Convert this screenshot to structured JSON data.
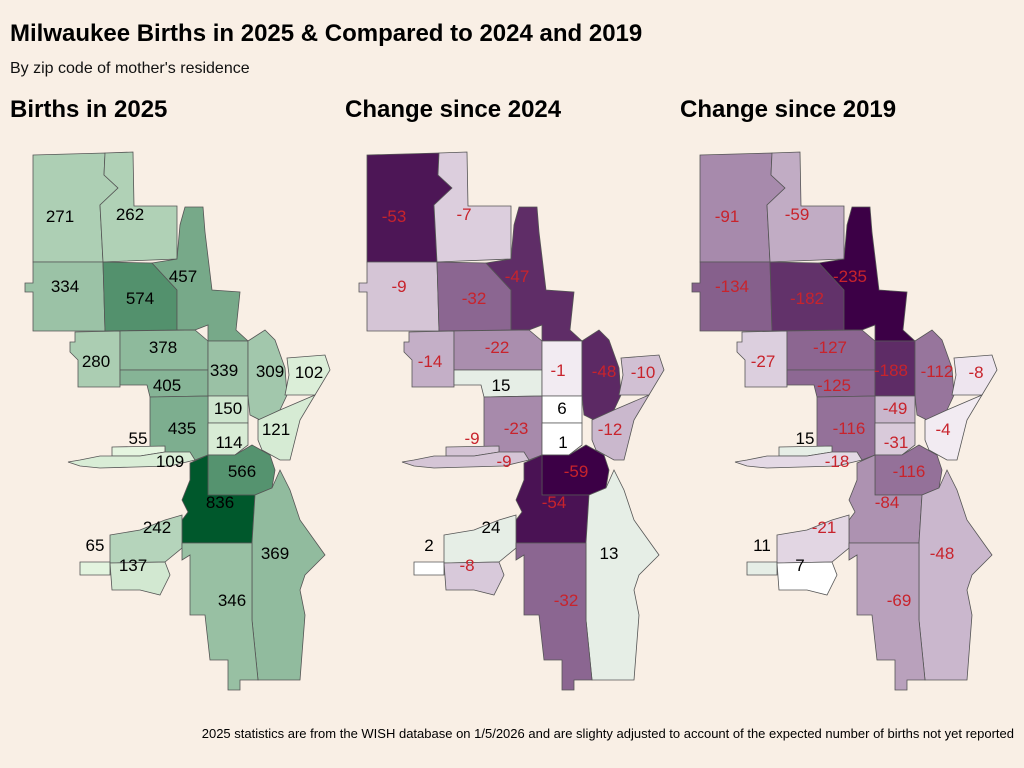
{
  "title": "Milwaukee Births in 2025 & Compared to 2024 and 2019",
  "subtitle": "By zip code of mother's residence",
  "panels": [
    {
      "title": "Births in 2025",
      "field": "births",
      "palette": "green"
    },
    {
      "title": "Change since 2024",
      "field": "change_since_2024",
      "palette": "purple"
    },
    {
      "title": "Change since 2019",
      "field": "change_since_2019",
      "palette": "purple"
    }
  ],
  "footer": "2025 statistics are from the WISH database on 1/5/2026 and are slighty adjusted to account of the expected number of births not yet reported",
  "colors": {
    "background": "#f9efe5",
    "births_low": "#e5f5e0",
    "births_high": "#00582c",
    "decline_low": "#f7f1f7",
    "decline_high": "#3c0046",
    "increase": "#e6eee6",
    "negative_label": "#c8232c",
    "positive_label": "#000000",
    "border": "#555555"
  },
  "regions": [
    {
      "births": 271,
      "change_since_2024": -53,
      "change_since_2019": -91
    },
    {
      "births": 262,
      "change_since_2024": -7,
      "change_since_2019": -59
    },
    {
      "births": 334,
      "change_since_2024": -9,
      "change_since_2019": -134
    },
    {
      "births": 574,
      "change_since_2024": -32,
      "change_since_2019": -182
    },
    {
      "births": 457,
      "change_since_2024": -47,
      "change_since_2019": -235
    },
    {
      "births": 280,
      "change_since_2024": -14,
      "change_since_2019": -27
    },
    {
      "births": 378,
      "change_since_2024": -22,
      "change_since_2019": -127
    },
    {
      "births": 405,
      "change_since_2024": 15,
      "change_since_2019": -125
    },
    {
      "births": 339,
      "change_since_2024": -1,
      "change_since_2019": -188
    },
    {
      "births": 309,
      "change_since_2024": -48,
      "change_since_2019": -112
    },
    {
      "births": 102,
      "change_since_2024": -10,
      "change_since_2019": -8
    },
    {
      "births": 150,
      "change_since_2024": 6,
      "change_since_2019": -49
    },
    {
      "births": 435,
      "change_since_2024": -23,
      "change_since_2019": -116
    },
    {
      "births": 121,
      "change_since_2024": -12,
      "change_since_2019": -4
    },
    {
      "births": 114,
      "change_since_2024": 1,
      "change_since_2019": -31
    },
    {
      "births": 55,
      "change_since_2024": -9,
      "change_since_2019": 15
    },
    {
      "births": 109,
      "change_since_2024": -9,
      "change_since_2019": -18
    },
    {
      "births": 566,
      "change_since_2024": -59,
      "change_since_2019": -116
    },
    {
      "births": 836,
      "change_since_2024": -54,
      "change_since_2019": -84
    },
    {
      "births": 242,
      "change_since_2024": 24,
      "change_since_2019": -21
    },
    {
      "births": 65,
      "change_since_2024": 2,
      "change_since_2019": 11
    },
    {
      "births": 137,
      "change_since_2024": -8,
      "change_since_2019": 7
    },
    {
      "births": 369,
      "change_since_2024": 13,
      "change_since_2019": -48
    },
    {
      "births": 346,
      "change_since_2024": -32,
      "change_since_2019": -69
    }
  ]
}
